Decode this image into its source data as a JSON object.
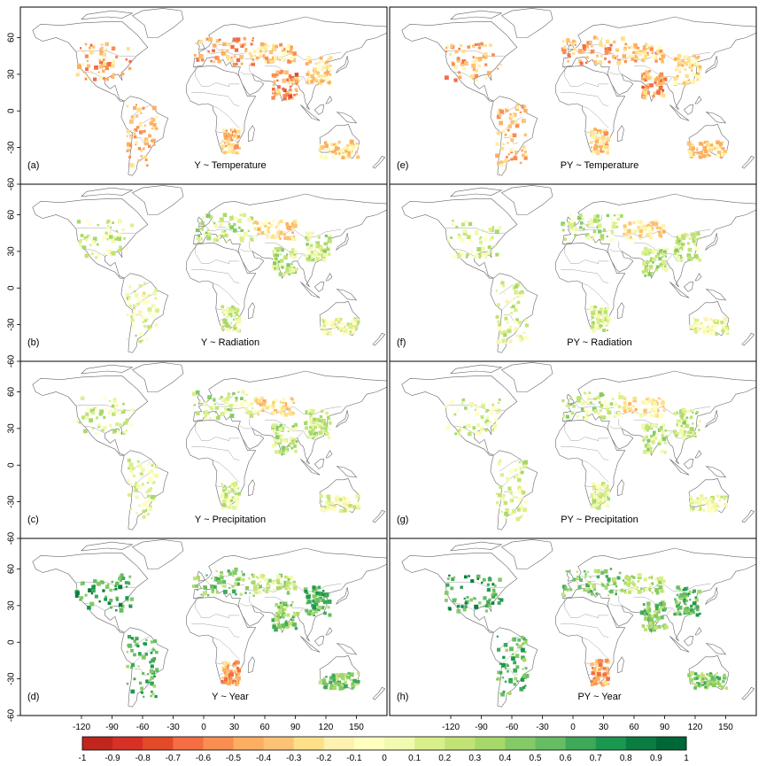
{
  "chart_data": {
    "type": "heatmap",
    "layout": "4x2 grid of world maps",
    "x_ticks": [
      -120,
      -90,
      -60,
      -30,
      0,
      30,
      60,
      90,
      120,
      150
    ],
    "y_ticks": [
      60,
      30,
      0,
      -30,
      -60
    ],
    "xlim": [
      -180,
      180
    ],
    "ylim": [
      -60,
      85
    ],
    "colorbar": {
      "ticks": [
        "-1",
        "-0.9",
        "-0.8",
        "-0.7",
        "-0.6",
        "-0.5",
        "-0.4",
        "-0.3",
        "-0.2",
        "-0.1",
        "0",
        "0.1",
        "0.2",
        "0.3",
        "0.4",
        "0.5",
        "0.6",
        "0.7",
        "0.8",
        "0.9",
        "1"
      ],
      "colors": [
        "#a50026",
        "#c0261e",
        "#d73027",
        "#e34a2a",
        "#f46d43",
        "#f98d52",
        "#fdae61",
        "#fdc274",
        "#fee08b",
        "#fff2b0",
        "#ffffbf",
        "#f2f9b0",
        "#d9ef8b",
        "#c1e376",
        "#a6d96a",
        "#84ca66",
        "#66bd63",
        "#3fa95a",
        "#1a9850",
        "#0b7d40",
        "#006837"
      ]
    },
    "panels": [
      {
        "tag": "(a)",
        "title": "Y ~ Temperature",
        "tone": "negative"
      },
      {
        "tag": "(e)",
        "title": "PY ~ Temperature",
        "tone": "negative"
      },
      {
        "tag": "(b)",
        "title": "Y ~ Radiation",
        "tone": "mixed"
      },
      {
        "tag": "(f)",
        "title": "PY ~ Radiation",
        "tone": "mixed"
      },
      {
        "tag": "(c)",
        "title": "Y ~ Precipitation",
        "tone": "mixed"
      },
      {
        "tag": "(g)",
        "title": "PY ~ Precipitation",
        "tone": "mixed"
      },
      {
        "tag": "(d)",
        "title": "Y ~ Year",
        "tone": "positive"
      },
      {
        "tag": "(h)",
        "title": "PY ~ Year",
        "tone": "positive"
      }
    ],
    "regions": [
      {
        "name": "north-america",
        "lon": [
          -125,
          -70
        ],
        "lat": [
          25,
          55
        ]
      },
      {
        "name": "south-america",
        "lon": [
          -75,
          -45
        ],
        "lat": [
          -45,
          5
        ]
      },
      {
        "name": "europe",
        "lon": [
          -10,
          50
        ],
        "lat": [
          38,
          60
        ]
      },
      {
        "name": "central-asia",
        "lon": [
          50,
          90
        ],
        "lat": [
          40,
          55
        ]
      },
      {
        "name": "south-asia",
        "lon": [
          68,
          92
        ],
        "lat": [
          10,
          33
        ]
      },
      {
        "name": "east-asia",
        "lon": [
          100,
          125
        ],
        "lat": [
          22,
          45
        ]
      },
      {
        "name": "southern-africa",
        "lon": [
          18,
          35
        ],
        "lat": [
          -35,
          -15
        ]
      },
      {
        "name": "australia",
        "lon": [
          114,
          152
        ],
        "lat": [
          -38,
          -25
        ]
      }
    ]
  }
}
